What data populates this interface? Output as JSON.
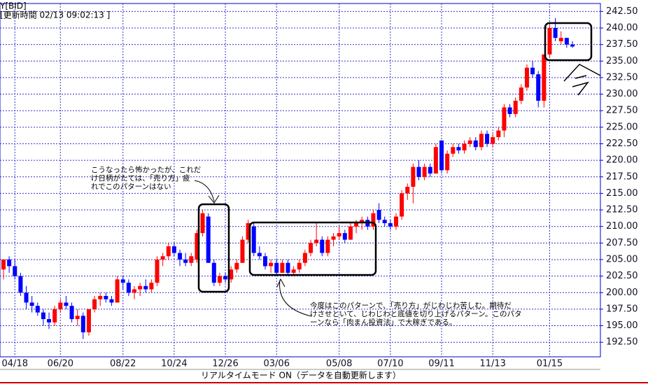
{
  "chart_data": {
    "type": "candlestick",
    "header": "Y[BID]",
    "update_time": "[更新時間 02/13 09:02:13 ]",
    "status": "リアルタイムモード ON（データを自動更新します）",
    "up_color": "#ff0000",
    "down_color": "#0000ff",
    "grid": true,
    "annotations": [
      [
        "こうなったら怖かったが、これだ",
        "け日柄がたては、「売り方」疲",
        "れでこのパターンはない"
      ],
      [
        "今度はこのパターンで、「売り方」がじわじわ苦しむ。期待だ",
        "けさせといて、じわじわと底値を切り上げるパターン。このパタ",
        "ーンなら「肉まん投資法」で大稼ぎである。"
      ]
    ],
    "categories": [
      null,
      null,
      "04/18",
      null,
      null,
      null,
      null,
      null,
      null,
      null,
      "06/20",
      null,
      null,
      null,
      null,
      null,
      null,
      null,
      null,
      null,
      null,
      "08/22",
      null,
      null,
      null,
      null,
      null,
      null,
      null,
      null,
      "10/24",
      null,
      null,
      null,
      null,
      null,
      null,
      null,
      null,
      "12/26",
      null,
      null,
      null,
      null,
      null,
      null,
      null,
      null,
      "03/06",
      null,
      null,
      null,
      null,
      null,
      null,
      null,
      null,
      null,
      null,
      "05/08",
      null,
      null,
      null,
      null,
      null,
      null,
      null,
      null,
      "07/10",
      null,
      null,
      null,
      null,
      null,
      null,
      null,
      null,
      "09/11",
      null,
      null,
      null,
      null,
      null,
      null,
      null,
      null,
      "11/13",
      null,
      null,
      null,
      null,
      null,
      null,
      null,
      null,
      null,
      "01/15",
      null,
      null,
      null,
      null
    ],
    "ohlc": [
      [
        203.5,
        205,
        202,
        205
      ],
      [
        205,
        205.5,
        203,
        204
      ],
      [
        204,
        205,
        202,
        202.5
      ],
      [
        202.5,
        203,
        199.5,
        200
      ],
      [
        200,
        201,
        197.5,
        198.5
      ],
      [
        198.5,
        199.5,
        197,
        198
      ],
      [
        198,
        198.5,
        196.5,
        197
      ],
      [
        197,
        197.5,
        195,
        196
      ],
      [
        196,
        197,
        194.5,
        195.5
      ],
      [
        195.5,
        198,
        195,
        197.5
      ],
      [
        197.5,
        199,
        197,
        198.5
      ],
      [
        198.5,
        199.5,
        197.5,
        198
      ],
      [
        198,
        198.5,
        195.5,
        196
      ],
      [
        196,
        197.5,
        195,
        196.5
      ],
      [
        196.5,
        197,
        193,
        194
      ],
      [
        194,
        197.5,
        193.5,
        197.5
      ],
      [
        197.5,
        199.5,
        197,
        199
      ],
      [
        199,
        200,
        198,
        199.5
      ],
      [
        199.5,
        200,
        198.5,
        199
      ],
      [
        199,
        199.5,
        198,
        198.5
      ],
      [
        198.5,
        202.5,
        198.5,
        202
      ],
      [
        202,
        202.5,
        200.5,
        201.5
      ],
      [
        201.5,
        202,
        199.5,
        200
      ],
      [
        200,
        201,
        199,
        200.5
      ],
      [
        200.5,
        201.5,
        199.5,
        201
      ],
      [
        201,
        202,
        200,
        200.5
      ],
      [
        200.5,
        202,
        200,
        201.5
      ],
      [
        201.5,
        205.5,
        201,
        205
      ],
      [
        205,
        206,
        204,
        205.5
      ],
      [
        205.5,
        207.5,
        205,
        207
      ],
      [
        207,
        207.5,
        205.5,
        206
      ],
      [
        206,
        206.5,
        204,
        205
      ],
      [
        205,
        206,
        204,
        204.5
      ],
      [
        204.5,
        206,
        204,
        205.5
      ],
      [
        205,
        209.5,
        204.5,
        209
      ],
      [
        209,
        212.5,
        208.5,
        212
      ],
      [
        211.5,
        212,
        204.5,
        204.5
      ],
      [
        204.5,
        205,
        201,
        201.5
      ],
      [
        201.5,
        203,
        201,
        202.5
      ],
      [
        202.5,
        203,
        201.5,
        202
      ],
      [
        202,
        204,
        201.5,
        203.5
      ],
      [
        203.5,
        205,
        203,
        204.5
      ],
      [
        204.5,
        208.5,
        204.5,
        208
      ],
      [
        208,
        211,
        207.5,
        210.5
      ],
      [
        210,
        210.5,
        205.5,
        206
      ],
      [
        206,
        207,
        205,
        205.5
      ],
      [
        205.5,
        206,
        203.5,
        204
      ],
      [
        204,
        205,
        203,
        204.5
      ],
      [
        204.5,
        205,
        202.5,
        203
      ],
      [
        203,
        205,
        203,
        204.5
      ],
      [
        204.5,
        205,
        202.5,
        203
      ],
      [
        203,
        204,
        202.5,
        203.5
      ],
      [
        203.5,
        205,
        203,
        204.5
      ],
      [
        204.5,
        206.5,
        204,
        206
      ],
      [
        206,
        208,
        205.5,
        207.5
      ],
      [
        207.5,
        210.5,
        207,
        208
      ],
      [
        208,
        208.5,
        205.5,
        206
      ],
      [
        206,
        208.5,
        205.5,
        208
      ],
      [
        208,
        209,
        207,
        208.5
      ],
      [
        208.5,
        210,
        208,
        209
      ],
      [
        209,
        209.5,
        207.5,
        208
      ],
      [
        208,
        210.5,
        208,
        210
      ],
      [
        210,
        211,
        209,
        210.5
      ],
      [
        210.5,
        211.5,
        209.5,
        211
      ],
      [
        211,
        211.5,
        209.5,
        210
      ],
      [
        210,
        212.5,
        209.5,
        212
      ],
      [
        212.5,
        213.5,
        210.5,
        211
      ],
      [
        211,
        211.5,
        210,
        210.5
      ],
      [
        210.5,
        211,
        209.5,
        210
      ],
      [
        210,
        212,
        209.5,
        211.5
      ],
      [
        211.5,
        215.5,
        211,
        215
      ],
      [
        215,
        216.5,
        214,
        216
      ],
      [
        216,
        219.5,
        213.5,
        219
      ],
      [
        219,
        220,
        217,
        217.5
      ],
      [
        217.5,
        219.5,
        217,
        219
      ],
      [
        219,
        219.5,
        217.5,
        218
      ],
      [
        218,
        222.5,
        218,
        222
      ],
      [
        223,
        223,
        218,
        218.5
      ],
      [
        218.5,
        221.5,
        218,
        221
      ],
      [
        221,
        222.5,
        220.5,
        222
      ],
      [
        222,
        222.5,
        221,
        221.5
      ],
      [
        221.5,
        223,
        221,
        222.5
      ],
      [
        222.5,
        223.5,
        222,
        223
      ],
      [
        223,
        223.5,
        221.5,
        222
      ],
      [
        222,
        224.5,
        221.5,
        224
      ],
      [
        224,
        224.5,
        222,
        222.5
      ],
      [
        222.5,
        224,
        222,
        223.5
      ],
      [
        223.5,
        225,
        223,
        224.5
      ],
      [
        224.5,
        228.5,
        223.5,
        228
      ],
      [
        228,
        228.5,
        226.5,
        227
      ],
      [
        227,
        229.5,
        226.5,
        229
      ],
      [
        229,
        231.5,
        228.5,
        231
      ],
      [
        231,
        234.5,
        230.5,
        234
      ],
      [
        234,
        235,
        232.5,
        233
      ],
      [
        233,
        233.5,
        228,
        229
      ],
      [
        229,
        236,
        228,
        236
      ],
      [
        236,
        240.5,
        235.5,
        240
      ],
      [
        240,
        241.5,
        238,
        238.5
      ],
      [
        238,
        239.5,
        237.5,
        238.5
      ],
      [
        238.5,
        238.5,
        237,
        237.5
      ],
      [
        237.5,
        238,
        237,
        237.2
      ]
    ],
    "ylim": [
      190.3,
      243.7
    ],
    "yticks": [
      {
        "value": 192.5,
        "label": "192.50"
      },
      {
        "value": 195,
        "label": "195.00"
      },
      {
        "value": 197.5,
        "label": "197.50"
      },
      {
        "value": 200,
        "label": "200.00"
      },
      {
        "value": 202.5,
        "label": "202.50"
      },
      {
        "value": 205,
        "label": "205.00"
      },
      {
        "value": 207.5,
        "label": "207.50"
      },
      {
        "value": 210,
        "label": "210.00"
      },
      {
        "value": 212.5,
        "label": "212.50"
      },
      {
        "value": 215,
        "label": "215.00"
      },
      {
        "value": 217.5,
        "label": "217.50"
      },
      {
        "value": 220,
        "label": "220.00"
      },
      {
        "value": 222.5,
        "label": "222.50"
      },
      {
        "value": 225,
        "label": "225.00"
      },
      {
        "value": 227.5,
        "label": "227.50"
      },
      {
        "value": 230,
        "label": "230.00"
      },
      {
        "value": 232.5,
        "label": "232.50"
      },
      {
        "value": 235,
        "label": "235.00"
      },
      {
        "value": 237.5,
        "label": "237.50"
      },
      {
        "value": 240,
        "label": "240.00"
      },
      {
        "value": 242.5,
        "label": "242.50"
      }
    ]
  }
}
